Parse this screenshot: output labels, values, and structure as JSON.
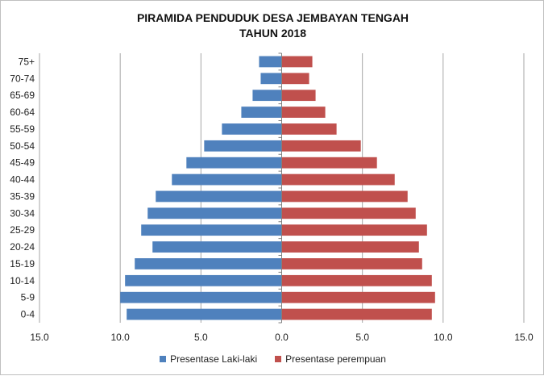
{
  "chart_data": {
    "type": "bar",
    "orientation": "horizontal",
    "title": "PIRAMIDA PENDUDUK DESA JEMBAYAN TENGAH",
    "subtitle": "TAHUN 2018",
    "xlabel": "",
    "ylabel": "",
    "xlim": [
      -15,
      15
    ],
    "x_ticks": [
      -15,
      -10,
      -5,
      0,
      5,
      10,
      15
    ],
    "x_tick_labels": [
      "15.0",
      "10.0",
      "5.0",
      "0.0",
      "5.0",
      "10.0",
      "15.0"
    ],
    "grid": "vertical",
    "legend_position": "bottom",
    "categories": [
      "75+",
      "70-74",
      "65-69",
      "60-64",
      "55-59",
      "50-54",
      "45-49",
      "40-44",
      "35-39",
      "30-34",
      "25-29",
      "20-24",
      "15-19",
      "10-14",
      "5-9",
      "0-4"
    ],
    "series": [
      {
        "name": "Presentase Laki-laki",
        "color": "#4f81bd",
        "side": "left",
        "values": [
          1.4,
          1.3,
          1.8,
          2.5,
          3.7,
          4.8,
          5.9,
          6.8,
          7.8,
          8.3,
          8.7,
          8.0,
          9.1,
          9.7,
          10.0,
          9.6
        ]
      },
      {
        "name": "Presentase perempuan",
        "color": "#c0504d",
        "side": "right",
        "values": [
          1.9,
          1.7,
          2.1,
          2.7,
          3.4,
          4.9,
          5.9,
          7.0,
          7.8,
          8.3,
          9.0,
          8.5,
          8.7,
          9.3,
          9.5,
          9.3
        ]
      }
    ]
  }
}
